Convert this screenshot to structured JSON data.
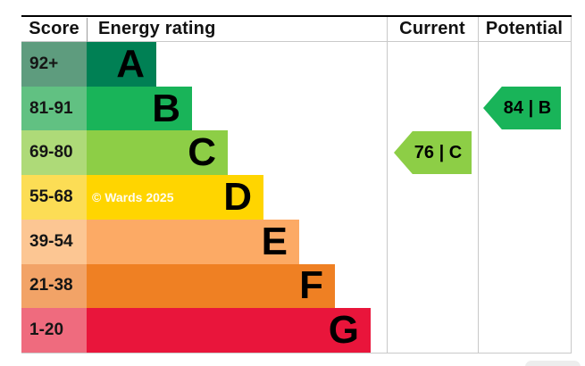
{
  "header": {
    "score": "Score",
    "energy_rating": "Energy rating",
    "current": "Current",
    "potential": "Potential"
  },
  "watermark": "© Wards 2025",
  "bands": [
    {
      "letter": "A",
      "score": "92+",
      "color": "#008054",
      "score_color": "#5e9c7e",
      "bar_css": "78px"
    },
    {
      "letter": "B",
      "score": "81-91",
      "color": "#19b459",
      "score_color": "#61c182",
      "bar_css": "118px"
    },
    {
      "letter": "C",
      "score": "69-80",
      "color": "#8dce46",
      "score_color": "#aeda78",
      "bar_css": "158px"
    },
    {
      "letter": "D",
      "score": "55-68",
      "color": "#ffd500",
      "score_color": "#fcdd55",
      "bar_css": "198px"
    },
    {
      "letter": "E",
      "score": "39-54",
      "color": "#fcaa65",
      "score_color": "#fcc693",
      "bar_css": "238px"
    },
    {
      "letter": "F",
      "score": "21-38",
      "color": "#ef8023",
      "score_color": "#f2a367",
      "bar_css": "278px"
    },
    {
      "letter": "G",
      "score": "1-20",
      "color": "#e9153b",
      "score_color": "#ef6b7e",
      "bar_css": "318px"
    }
  ],
  "current": {
    "label": "76 | C",
    "color": "#8dce46"
  },
  "potential": {
    "label": "84 | B",
    "color": "#19b459"
  },
  "chart_data": {
    "type": "bar",
    "title": "Energy rating",
    "columns": [
      "Score",
      "Energy rating",
      "Current",
      "Potential"
    ],
    "categories": [
      "A",
      "B",
      "C",
      "D",
      "E",
      "F",
      "G"
    ],
    "score_ranges": [
      "92+",
      "81-91",
      "69-80",
      "55-68",
      "39-54",
      "21-38",
      "1-20"
    ],
    "band_colors": [
      "#008054",
      "#19b459",
      "#8dce46",
      "#ffd500",
      "#fcaa65",
      "#ef8023",
      "#e9153b"
    ],
    "relative_bar_lengths": [
      78,
      118,
      158,
      198,
      238,
      278,
      318
    ],
    "current": {
      "score": 76,
      "band": "C"
    },
    "potential": {
      "score": 84,
      "band": "B"
    },
    "watermark": "© Wards 2025",
    "legend_position": "none",
    "grid": false
  }
}
